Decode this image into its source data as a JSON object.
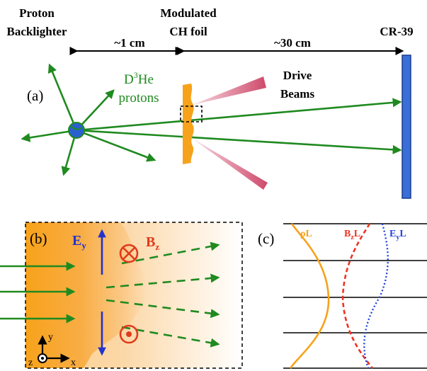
{
  "panel_a": {
    "label": "(a)",
    "backlighter_line1": "Proton",
    "backlighter_line2": "Backlighter",
    "foil_line1": "Modulated",
    "foil_line2": "CH foil",
    "detector": "CR-39",
    "dist_short": "~1 cm",
    "dist_long": "~30 cm",
    "protons_line1_base": "D",
    "protons_line1_sup": "3",
    "protons_line1_tail": "He",
    "protons_line2": "protons",
    "beams_line1": "Drive",
    "beams_line2": "Beams"
  },
  "panel_b": {
    "label": "(b)",
    "field_e_base": "E",
    "field_e_sub": "y",
    "field_b_base": "B",
    "field_b_sub": "z",
    "axis_y": "y",
    "axis_z": "z",
    "axis_x": "x"
  },
  "panel_c": {
    "label": "(c)",
    "rho_label": "ρL",
    "bzl_base": "B",
    "bzl_sub": "z",
    "bzl_tail": "L",
    "eyl_base": "E",
    "eyl_sub": "y",
    "eyl_tail": "L"
  },
  "colors": {
    "proton_arrows": "#1f8a1f",
    "foil": "#f7a21b",
    "detector": "#3a6fd8",
    "field_e": "#2233cc",
    "field_b": "#e03a1a",
    "curve_rho": "#f7a21b",
    "curve_bzl": "#ee3322",
    "curve_eyl": "#2244dd",
    "beams": "#d24a6a"
  }
}
